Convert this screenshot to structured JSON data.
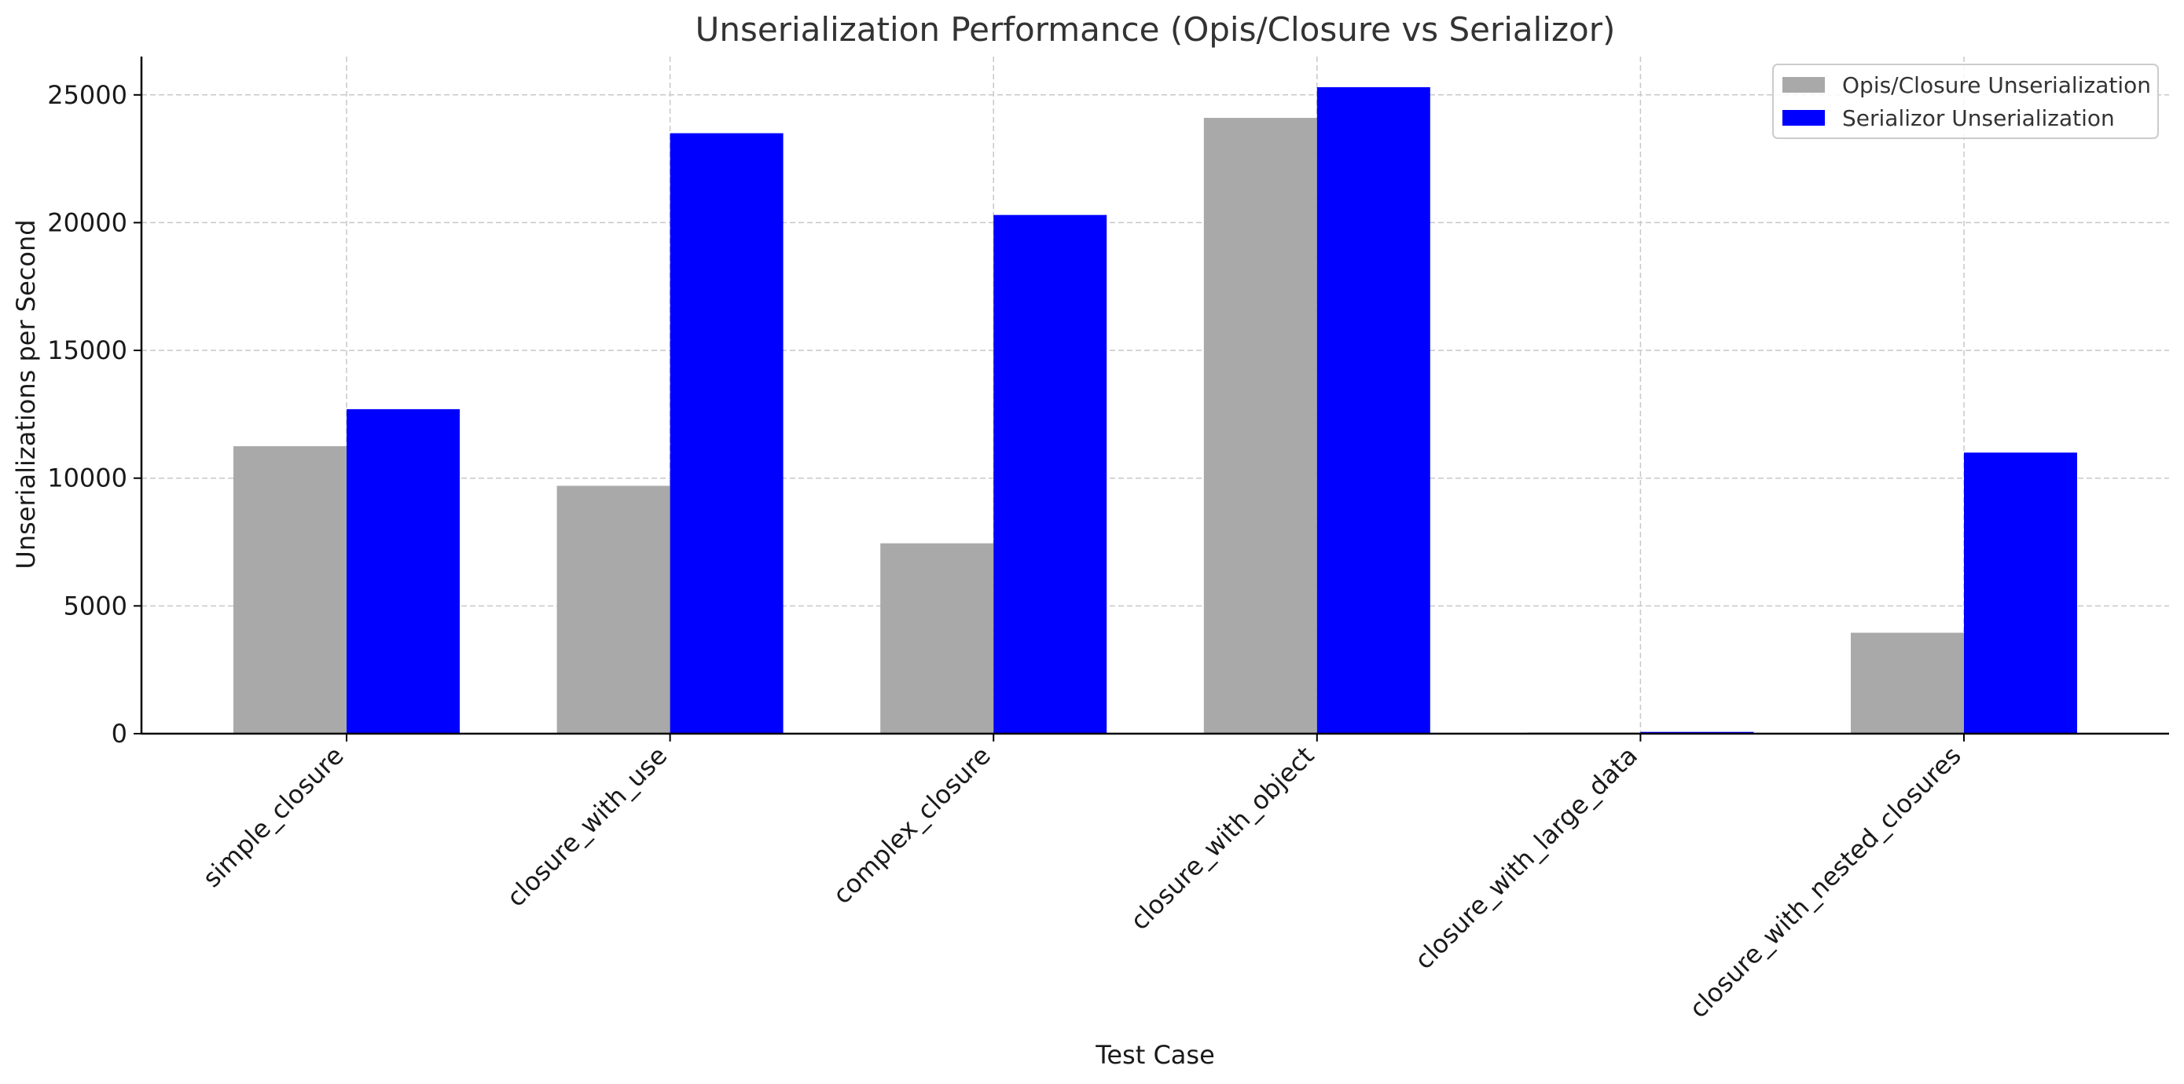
{
  "chart_data": {
    "type": "bar",
    "title": "Unserialization Performance (Opis/Closure vs Serializor)",
    "xlabel": "Test Case",
    "ylabel": "Unserializations per Second",
    "categories": [
      "simple_closure",
      "closure_with_use",
      "complex_closure",
      "closure_with_object",
      "closure_with_large_data",
      "closure_with_nested_closures"
    ],
    "series": [
      {
        "name": "Opis/Closure Unserialization",
        "color": "#a9a9a9",
        "values": [
          11250,
          9700,
          7450,
          24100,
          40,
          3950
        ]
      },
      {
        "name": "Serializor Unserialization",
        "color": "#0000ff",
        "values": [
          12700,
          23500,
          20300,
          25300,
          70,
          11000
        ]
      }
    ],
    "ylim": [
      0,
      26500
    ],
    "yticks": [
      0,
      5000,
      10000,
      15000,
      20000,
      25000
    ],
    "grid": true,
    "legend_position": "top-right"
  }
}
